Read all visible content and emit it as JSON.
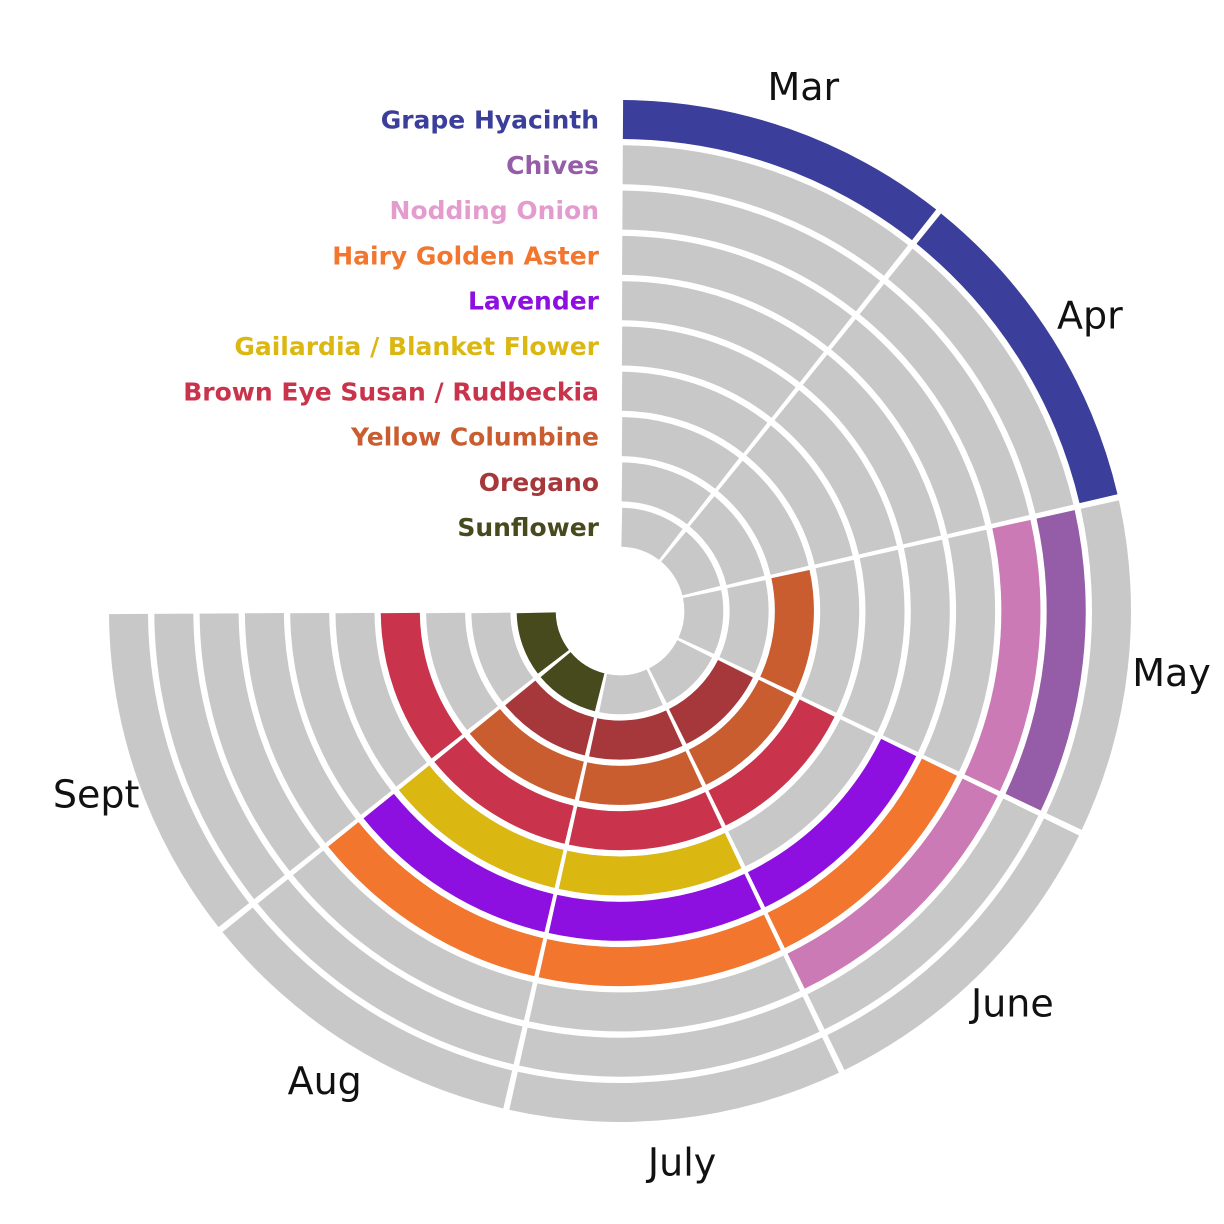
{
  "chart_data": {
    "type": "radial-bar",
    "months": [
      "Mar",
      "Apr",
      "May",
      "June",
      "July",
      "Aug",
      "Sept"
    ],
    "series": [
      {
        "name": "Grape Hyacinth",
        "color": "#3b3f9b",
        "bloom": [
          "Mar",
          "Apr"
        ]
      },
      {
        "name": "Chives",
        "color": "#955ca8",
        "bloom": [
          "May"
        ]
      },
      {
        "name": "Nodding Onion",
        "color": "#e49ccf",
        "text_color": "#e49ccf",
        "bar_color": "#cc7ab6",
        "bloom": [
          "May",
          "June"
        ]
      },
      {
        "name": "Hairy Golden Aster",
        "color": "#f2762e",
        "bloom": [
          "June",
          "July",
          "Aug"
        ]
      },
      {
        "name": "Lavender",
        "color": "#8e10e0",
        "bloom": [
          "June",
          "July",
          "Aug"
        ]
      },
      {
        "name": "Gailardia / Blanket Flower",
        "color": "#dbb712",
        "bloom": [
          "July",
          "Aug"
        ]
      },
      {
        "name": "Brown Eye Susan / Rudbeckia",
        "color": "#c9334b",
        "bloom": [
          "June",
          "July",
          "Aug",
          "Sept"
        ]
      },
      {
        "name": "Yellow Columbine",
        "color": "#c95d30",
        "bloom": [
          "May",
          "June",
          "July",
          "Aug"
        ]
      },
      {
        "name": "Oregano",
        "color": "#a6373b",
        "bloom": [
          "June",
          "July",
          "Aug"
        ]
      },
      {
        "name": "Sunflower",
        "color": "#474a1c",
        "bloom": [
          "Aug",
          "Sept"
        ]
      }
    ],
    "background_color": "#c8c8c8",
    "legend_placement": "top-left"
  }
}
